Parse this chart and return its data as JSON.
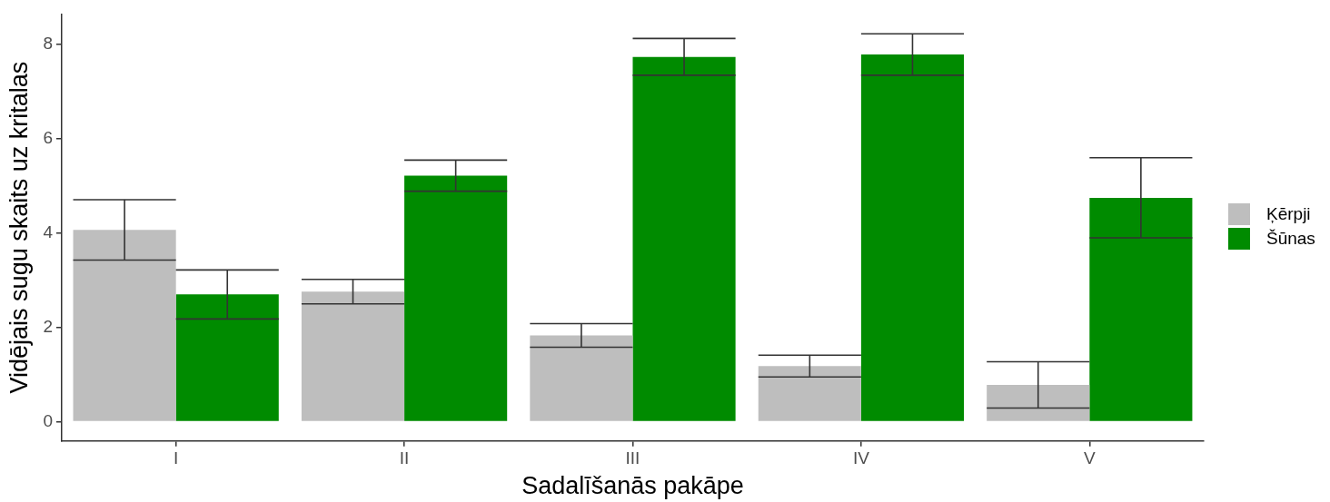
{
  "chart_data": {
    "type": "bar",
    "xlabel": "Sadalīšanās pakāpe",
    "ylabel": "Vidējais sugu skaits uz kritalas",
    "categories": [
      "I",
      "II",
      "III",
      "IV",
      "V"
    ],
    "series": [
      {
        "name": "Ķērpji",
        "color": "#bebebe",
        "values": [
          4.07,
          2.76,
          1.83,
          1.18,
          0.78
        ],
        "errors": [
          0.64,
          0.26,
          0.25,
          0.23,
          0.49
        ]
      },
      {
        "name": "Šūnas",
        "color": "#008b00",
        "values": [
          2.7,
          5.22,
          7.74,
          7.79,
          4.75
        ],
        "errors": [
          0.52,
          0.33,
          0.39,
          0.44,
          0.85
        ]
      }
    ],
    "ylim": [
      -0.41,
      8.65
    ],
    "yticks": [
      0,
      2,
      4,
      6,
      8
    ],
    "legend": "right"
  }
}
